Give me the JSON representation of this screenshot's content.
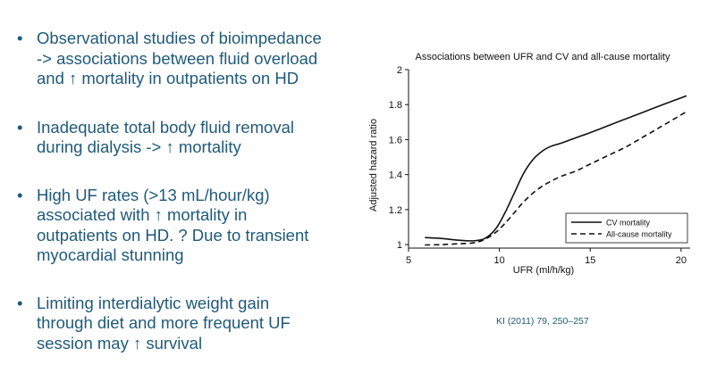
{
  "bullets": [
    "Observational studies of bioimpedance\n-> associations between fluid overload\nand ↑ mortality in outpatients on HD",
    "Inadequate total body fluid removal\nduring dialysis -> ↑ mortality",
    "High UF rates (>13 mL/hour/kg)\nassociated with ↑ mortality in\noutpatients on HD. ? Due to transient\nmyocardial stunning",
    "Limiting interdialytic weight gain\nthrough diet and more frequent UF\nsession may ↑ survival"
  ],
  "bullet_symbol": "•",
  "citation": "KI (2011) 79, 250–257",
  "colors": {
    "text": "#1f5a7a",
    "chart_ink": "#111111"
  },
  "chart_data": {
    "type": "line",
    "title": "Associations between UFR and CV and all-cause mortality",
    "xlabel": "UFR (ml/h/kg)",
    "ylabel": "Adjusted hazard ratio",
    "xlim": [
      5,
      20.5
    ],
    "ylim": [
      0.98,
      2.0
    ],
    "xticks": [
      5,
      10,
      15,
      20
    ],
    "yticks": [
      1,
      1.2,
      1.4,
      1.6,
      1.8,
      2
    ],
    "ytick_labels": [
      "1",
      "1.2",
      "1.4",
      "1.6",
      "1.8",
      "2"
    ],
    "legend_position": "bottom-right",
    "grid": false,
    "series": [
      {
        "name": "CV mortality",
        "style": "solid",
        "x": [
          5.9,
          6.8,
          7.8,
          8.6,
          9.2,
          9.8,
          10.3,
          10.8,
          11.3,
          11.8,
          12.3,
          12.8,
          13.4,
          14.2,
          15,
          16,
          17,
          18,
          19,
          20.3
        ],
        "y": [
          1.04,
          1.035,
          1.025,
          1.022,
          1.035,
          1.09,
          1.18,
          1.29,
          1.4,
          1.48,
          1.53,
          1.56,
          1.58,
          1.61,
          1.64,
          1.68,
          1.72,
          1.76,
          1.8,
          1.85
        ]
      },
      {
        "name": "All-cause mortality",
        "style": "dashed",
        "x": [
          5.9,
          6.8,
          7.8,
          8.6,
          9.2,
          9.8,
          10.3,
          10.8,
          11.3,
          11.8,
          12.3,
          12.8,
          13.4,
          14.2,
          15,
          16,
          17,
          18,
          19,
          20.3
        ],
        "y": [
          0.998,
          1.0,
          1.005,
          1.01,
          1.03,
          1.07,
          1.12,
          1.18,
          1.24,
          1.29,
          1.33,
          1.36,
          1.39,
          1.42,
          1.46,
          1.51,
          1.56,
          1.62,
          1.68,
          1.76
        ]
      }
    ]
  }
}
